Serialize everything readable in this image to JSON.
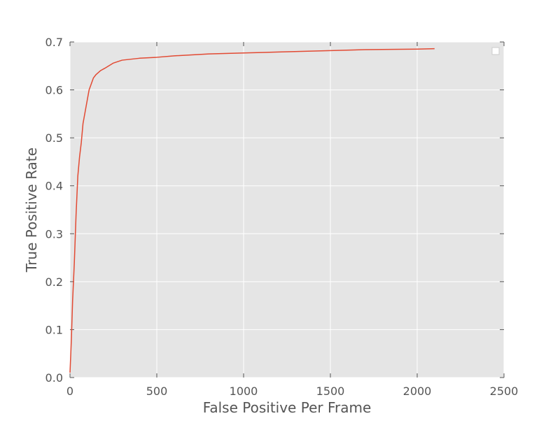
{
  "chart_data": {
    "type": "line",
    "title": "",
    "xlabel": "False Positive Per Frame",
    "ylabel": "True Positive Rate",
    "xlim": [
      0,
      2500
    ],
    "ylim": [
      0,
      0.7
    ],
    "x_ticks": [
      0,
      500,
      1000,
      1500,
      2000,
      2500
    ],
    "y_ticks": [
      0.0,
      0.1,
      0.2,
      0.3,
      0.4,
      0.5,
      0.6,
      0.7
    ],
    "x_tick_labels": [
      "0",
      "500",
      "1000",
      "1500",
      "2000",
      "2500"
    ],
    "y_tick_labels": [
      "0.0",
      "0.1",
      "0.2",
      "0.3",
      "0.4",
      "0.5",
      "0.6",
      "0.7"
    ],
    "grid": true,
    "legend": {
      "placement": "top-right",
      "entries": []
    },
    "colors": {
      "plot_background": "#e5e5e5",
      "grid": "#ffffff",
      "series": "#e24a33",
      "text": "#555555"
    },
    "series": [
      {
        "x": [
          0,
          8,
          15,
          25,
          35,
          45,
          55,
          65,
          75,
          80,
          90,
          100,
          110,
          120,
          135,
          150,
          175,
          200,
          250,
          300,
          400,
          500,
          600,
          800,
          1000,
          1200,
          1500,
          1700,
          2000,
          2100
        ],
        "y": [
          0.01,
          0.08,
          0.16,
          0.24,
          0.34,
          0.42,
          0.46,
          0.49,
          0.53,
          0.54,
          0.56,
          0.58,
          0.6,
          0.61,
          0.625,
          0.632,
          0.64,
          0.645,
          0.656,
          0.662,
          0.666,
          0.668,
          0.671,
          0.675,
          0.677,
          0.679,
          0.682,
          0.684,
          0.685,
          0.686
        ]
      }
    ]
  }
}
